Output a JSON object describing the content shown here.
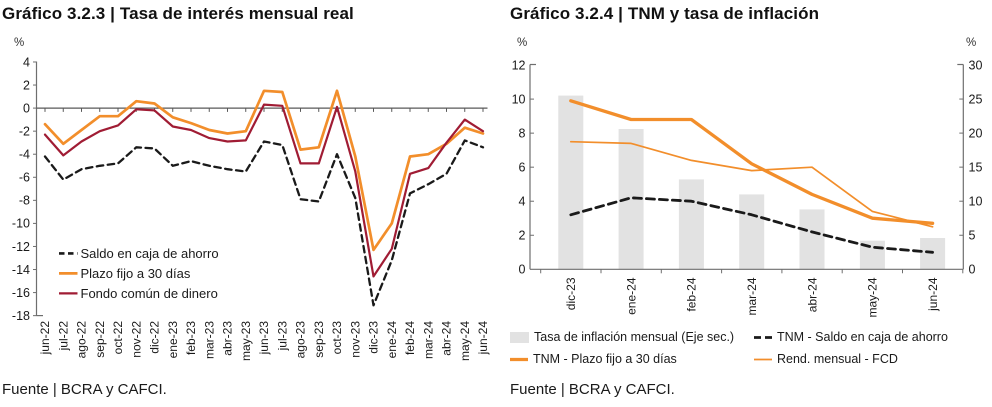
{
  "chart_data": [
    {
      "type": "line",
      "title": "Gráfico 3.2.3 | Tasa de interés mensual real",
      "y_unit": "%",
      "ylim": [
        -18,
        4
      ],
      "ytick_step": 2,
      "grid": false,
      "legend_position": "inside bottom-left",
      "x": [
        "jun-22",
        "jul-22",
        "ago-22",
        "sep-22",
        "oct-22",
        "nov-22",
        "dic-22",
        "ene-23",
        "feb-23",
        "mar-23",
        "abr-23",
        "may-23",
        "jun-23",
        "jul-23",
        "ago-23",
        "sep-23",
        "oct-23",
        "nov-23",
        "dic-23",
        "ene-24",
        "feb-24",
        "mar-24",
        "abr-24",
        "may-24",
        "jun-24"
      ],
      "series": [
        {
          "name": "Saldo en caja de ahorro",
          "style": "dashed",
          "color": "#1A1A1A",
          "values": [
            -4.2,
            -6.2,
            -5.3,
            -5.0,
            -4.8,
            -3.4,
            -3.5,
            -5.0,
            -4.6,
            -5.0,
            -5.3,
            -5.5,
            -2.9,
            -3.2,
            -7.9,
            -8.1,
            -4.0,
            -7.8,
            -17.1,
            -13.2,
            -7.4,
            -6.6,
            -5.7,
            -2.8,
            -3.4
          ]
        },
        {
          "name": "Plazo fijo a 30 días",
          "style": "solid",
          "thickness": "thick",
          "color": "#F28E2B",
          "values": [
            -1.4,
            -3.1,
            -1.9,
            -0.7,
            -0.7,
            0.6,
            0.4,
            -0.8,
            -1.3,
            -1.9,
            -2.2,
            -2.0,
            1.5,
            1.4,
            -3.6,
            -3.4,
            1.5,
            -4.2,
            -12.3,
            -10.0,
            -4.2,
            -4.0,
            -3.1,
            -1.7,
            -2.2
          ]
        },
        {
          "name": "Fondo común de dinero",
          "style": "solid",
          "thickness": "normal",
          "color": "#A01C34",
          "values": [
            -2.3,
            -4.1,
            -2.9,
            -2.0,
            -1.5,
            -0.1,
            -0.2,
            -1.6,
            -1.9,
            -2.6,
            -2.9,
            -2.8,
            0.3,
            0.2,
            -4.8,
            -4.8,
            0.1,
            -5.5,
            -14.6,
            -12.2,
            -5.7,
            -5.2,
            -3.0,
            -1.0,
            -2.0
          ]
        }
      ],
      "source": "Fuente | BCRA y CAFCI."
    },
    {
      "type": "combo-bar-line",
      "title": "Gráfico 3.2.4 | TNM y tasa de inflación",
      "y_unit_left": "%",
      "y_unit_right": "%",
      "ylim_left": [
        0,
        12
      ],
      "ytick_step_left": 2,
      "ylim_right": [
        0,
        30
      ],
      "ytick_step_right": 5,
      "grid": false,
      "legend_position": "below",
      "x": [
        "dic-23",
        "ene-24",
        "feb-24",
        "mar-24",
        "abr-24",
        "may-24",
        "jun-24"
      ],
      "bars": {
        "name": "Tasa de inflación mensual (Eje sec.)",
        "axis": "right",
        "color": "#E2E2E2",
        "values": [
          25.5,
          20.6,
          13.2,
          11.0,
          8.8,
          4.2,
          4.6
        ]
      },
      "series": [
        {
          "name": "TNM - Saldo en caja de ahorro",
          "axis": "left",
          "style": "dashed",
          "color": "#1A1A1A",
          "values": [
            3.2,
            4.2,
            4.0,
            3.2,
            2.2,
            1.3,
            1.0
          ]
        },
        {
          "name": "TNM - Plazo fijo a 30 días",
          "axis": "left",
          "style": "solid",
          "thickness": "thick",
          "color": "#F28E2B",
          "values": [
            9.9,
            8.8,
            8.8,
            6.2,
            4.4,
            3.0,
            2.7
          ]
        },
        {
          "name": "Rend. mensual - FCD",
          "axis": "left",
          "style": "solid",
          "thickness": "thin",
          "color": "#F28E2B",
          "values": [
            7.5,
            7.4,
            6.4,
            5.8,
            6.0,
            3.4,
            2.5
          ]
        }
      ],
      "source": "Fuente | BCRA y CAFCI."
    }
  ]
}
